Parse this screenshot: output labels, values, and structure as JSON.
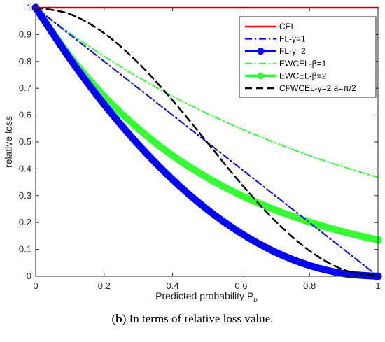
{
  "chart_data": {
    "type": "line",
    "xlabel": "Predicted probability P",
    "xlabel_subscript": "b",
    "ylabel": "relative loss",
    "xlim": [
      0,
      1
    ],
    "ylim": [
      0,
      1
    ],
    "x_ticks": [
      "0",
      "0.2",
      "0.4",
      "0.6",
      "0.8",
      "1"
    ],
    "y_ticks": [
      "0",
      "0.1",
      "0.2",
      "0.3",
      "0.4",
      "0.5",
      "0.6",
      "0.7",
      "0.8",
      "0.9",
      "1"
    ],
    "legend_position": "top-right",
    "x": [
      0,
      0.1,
      0.2,
      0.3,
      0.4,
      0.5,
      0.6,
      0.7,
      0.8,
      0.9,
      1
    ],
    "series": [
      {
        "name": "CEL",
        "color": "#ff0000",
        "style": "solid",
        "values": [
          1,
          1,
          1,
          1,
          1,
          1,
          1,
          1,
          1,
          1,
          1
        ]
      },
      {
        "name": "FL-γ=1",
        "color": "#0000ff",
        "style": "dashdot",
        "values": [
          1,
          0.9,
          0.8,
          0.7,
          0.6,
          0.5,
          0.4,
          0.3,
          0.2,
          0.1,
          0
        ]
      },
      {
        "name": "FL-γ=2",
        "color": "#0000ff",
        "style": "thick-marker",
        "values": [
          1,
          0.81,
          0.64,
          0.49,
          0.36,
          0.25,
          0.16,
          0.09,
          0.04,
          0.01,
          0
        ]
      },
      {
        "name": "EWCEL-β=1",
        "color": "#33ff33",
        "style": "dashdot",
        "values": [
          1,
          0.905,
          0.819,
          0.741,
          0.67,
          0.607,
          0.549,
          0.497,
          0.449,
          0.407,
          0.368
        ]
      },
      {
        "name": "EWCEL-β=2",
        "color": "#33ff33",
        "style": "thick-marker",
        "values": [
          1,
          0.819,
          0.67,
          0.549,
          0.449,
          0.368,
          0.301,
          0.247,
          0.202,
          0.165,
          0.135
        ]
      },
      {
        "name": "CFWCEL-γ=2 a=π/2",
        "color": "#000000",
        "style": "dashed",
        "values": [
          1,
          0.976,
          0.905,
          0.794,
          0.655,
          0.5,
          0.345,
          0.206,
          0.095,
          0.024,
          0
        ]
      }
    ],
    "legend_items": [
      {
        "label": "CEL"
      },
      {
        "label": "FL-γ=1"
      },
      {
        "label": "FL-γ=2"
      },
      {
        "label": "EWCEL-β=1"
      },
      {
        "label": "EWCEL-β=2"
      },
      {
        "label": "CFWCEL-γ=2 a=π/2"
      }
    ]
  },
  "caption": {
    "bold_part": "b",
    "rest": ") In terms of relative loss value."
  }
}
